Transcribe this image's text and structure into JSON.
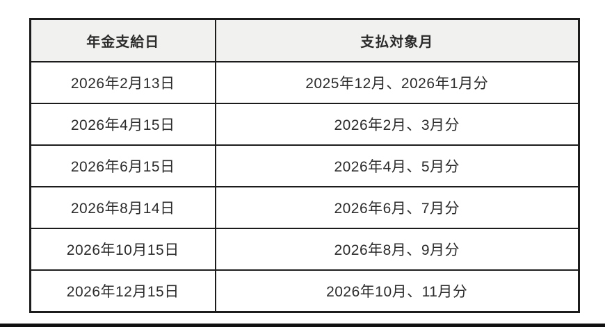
{
  "table": {
    "headers": [
      "年金支給日",
      "支払対象月"
    ],
    "rows": [
      [
        "2026年2月13日",
        "2025年12月、2026年1月分"
      ],
      [
        "2026年4月15日",
        "2026年2月、3月分"
      ],
      [
        "2026年6月15日",
        "2026年4月、5月分"
      ],
      [
        "2026年8月14日",
        "2026年6月、7月分"
      ],
      [
        "2026年10月15日",
        "2026年8月、9月分"
      ],
      [
        "2026年12月15日",
        "2026年10月、11月分"
      ]
    ]
  },
  "colors": {
    "header_background": "#f1f1ef",
    "cell_background": "#ffffff",
    "border": "#1c1c1c",
    "text": "#2b2b2b",
    "bottom_bar": "#101010"
  },
  "chart_data": {
    "type": "table",
    "title": "",
    "columns": [
      "年金支給日",
      "支払対象月"
    ],
    "rows": [
      [
        "2026年2月13日",
        "2025年12月、2026年1月分"
      ],
      [
        "2026年4月15日",
        "2026年2月、3月分"
      ],
      [
        "2026年6月15日",
        "2026年4月、5月分"
      ],
      [
        "2026年8月14日",
        "2026年6月、7月分"
      ],
      [
        "2026年10月15日",
        "2026年8月、9月分"
      ],
      [
        "2026年12月15日",
        "2026年10月、11月分"
      ]
    ]
  }
}
